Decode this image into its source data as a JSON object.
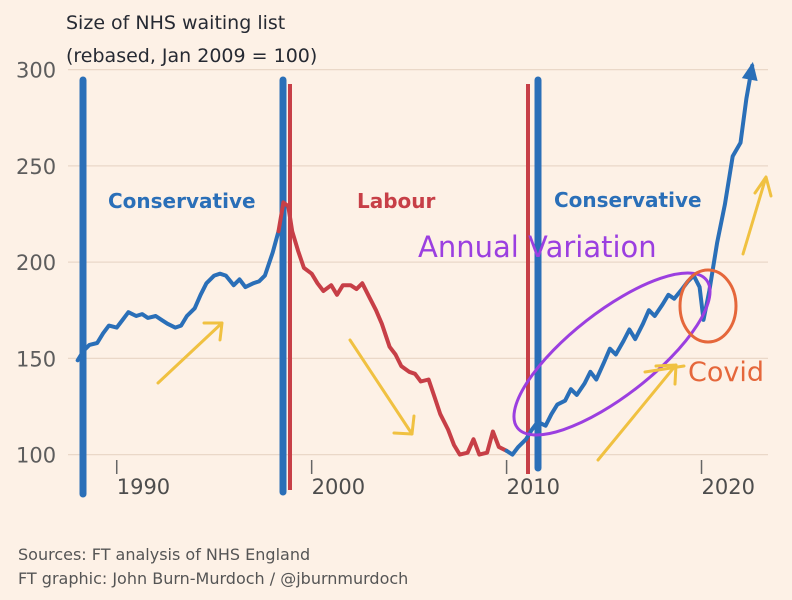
{
  "chart_data": {
    "type": "line",
    "title": "Size of NHS waiting list",
    "subtitle": "(rebased, Jan 2009 = 100)",
    "xlabel": "",
    "ylabel": "",
    "x_ticks": [
      "1990",
      "2000",
      "2010",
      "2020"
    ],
    "y_ticks": [
      "300",
      "250",
      "200",
      "150",
      "100"
    ],
    "xlim": [
      1987.5,
      2023
    ],
    "ylim": [
      92,
      305
    ],
    "grid": true,
    "series": [
      {
        "name": "",
        "color": "#2a6fb8",
        "points": [
          [
            1988.0,
            149
          ],
          [
            1988.3,
            154
          ],
          [
            1988.6,
            157
          ],
          [
            1989.0,
            158
          ],
          [
            1989.3,
            163
          ],
          [
            1989.6,
            167
          ],
          [
            1990.0,
            166
          ],
          [
            1990.3,
            170
          ],
          [
            1990.6,
            174
          ],
          [
            1991.0,
            172
          ],
          [
            1991.3,
            173
          ],
          [
            1991.6,
            171
          ],
          [
            1992.0,
            172
          ],
          [
            1992.3,
            170
          ],
          [
            1992.6,
            168
          ],
          [
            1993.0,
            166
          ],
          [
            1993.3,
            167
          ],
          [
            1993.6,
            172
          ],
          [
            1994.0,
            176
          ],
          [
            1994.3,
            183
          ],
          [
            1994.6,
            189
          ],
          [
            1995.0,
            193
          ],
          [
            1995.3,
            194
          ],
          [
            1995.6,
            193
          ],
          [
            1996.0,
            188
          ],
          [
            1996.3,
            191
          ],
          [
            1996.6,
            187
          ],
          [
            1997.0,
            189
          ],
          [
            1997.3,
            190
          ],
          [
            1997.6,
            193
          ],
          [
            1998.0,
            205
          ],
          [
            1998.3,
            216
          ]
        ]
      },
      {
        "name": "",
        "color": "#c73f47",
        "points": [
          [
            1998.3,
            216
          ],
          [
            1998.55,
            231
          ],
          [
            1998.8,
            229
          ],
          [
            1999.0,
            216
          ],
          [
            1999.3,
            206
          ],
          [
            1999.6,
            197
          ],
          [
            2000.0,
            194
          ],
          [
            2000.3,
            189
          ],
          [
            2000.6,
            185
          ],
          [
            2001.0,
            188
          ],
          [
            2001.3,
            183
          ],
          [
            2001.6,
            188
          ],
          [
            2002.0,
            188
          ],
          [
            2002.3,
            186
          ],
          [
            2002.6,
            189
          ],
          [
            2003.0,
            181
          ],
          [
            2003.3,
            175
          ],
          [
            2003.6,
            168
          ],
          [
            2004.0,
            156
          ],
          [
            2004.3,
            152
          ],
          [
            2004.6,
            146
          ],
          [
            2005.0,
            143
          ],
          [
            2005.3,
            142
          ],
          [
            2005.6,
            138
          ],
          [
            2006.0,
            139
          ],
          [
            2006.3,
            130
          ],
          [
            2006.6,
            121
          ],
          [
            2007.0,
            113
          ],
          [
            2007.3,
            105
          ],
          [
            2007.6,
            100
          ],
          [
            2008.0,
            101
          ],
          [
            2008.3,
            108
          ],
          [
            2008.6,
            100
          ],
          [
            2009.0,
            101
          ],
          [
            2009.3,
            112
          ],
          [
            2009.6,
            104
          ],
          [
            2010.0,
            102
          ]
        ]
      },
      {
        "name": "",
        "color": "#2a6fb8",
        "points": [
          [
            2010.0,
            102
          ],
          [
            2010.3,
            100
          ],
          [
            2010.6,
            104
          ],
          [
            2011.0,
            108
          ],
          [
            2011.3,
            113
          ],
          [
            2011.6,
            117
          ],
          [
            2012.0,
            115
          ],
          [
            2012.3,
            121
          ],
          [
            2012.6,
            126
          ],
          [
            2013.0,
            128
          ],
          [
            2013.3,
            134
          ],
          [
            2013.6,
            131
          ],
          [
            2014.0,
            137
          ],
          [
            2014.3,
            143
          ],
          [
            2014.6,
            139
          ],
          [
            2015.0,
            148
          ],
          [
            2015.3,
            155
          ],
          [
            2015.6,
            152
          ],
          [
            2016.0,
            159
          ],
          [
            2016.3,
            165
          ],
          [
            2016.6,
            160
          ],
          [
            2017.0,
            168
          ],
          [
            2017.3,
            175
          ],
          [
            2017.6,
            172
          ],
          [
            2018.0,
            178
          ],
          [
            2018.3,
            183
          ],
          [
            2018.6,
            181
          ],
          [
            2019.0,
            186
          ],
          [
            2019.3,
            190
          ],
          [
            2019.6,
            193
          ],
          [
            2019.9,
            187
          ],
          [
            2020.1,
            170
          ],
          [
            2020.4,
            185
          ],
          [
            2020.8,
            210
          ],
          [
            2021.2,
            230
          ],
          [
            2021.6,
            255
          ],
          [
            2022.0,
            262
          ],
          [
            2022.3,
            285
          ],
          [
            2022.6,
            302
          ]
        ]
      }
    ],
    "annotations": {
      "party_labels": [
        "Conservative",
        "Labour",
        "Conservative"
      ],
      "party_label_colors": [
        "#2a6fb8",
        "#c73f47",
        "#2a6fb8"
      ],
      "handwritten": [
        "Annual Variation",
        "Covid"
      ],
      "handwritten_colors": [
        "#9b3fe0",
        "#e5673b"
      ],
      "arrow_color": "#f0c141"
    },
    "sources": [
      "Sources: FT analysis of NHS England",
      "FT graphic: John Burn-Murdoch / @jburnmurdoch"
    ]
  },
  "colors": {
    "background": "#fdf1e6",
    "grid": "#ead8c8",
    "conservative": "#2a6fb8",
    "labour": "#c73f47"
  }
}
